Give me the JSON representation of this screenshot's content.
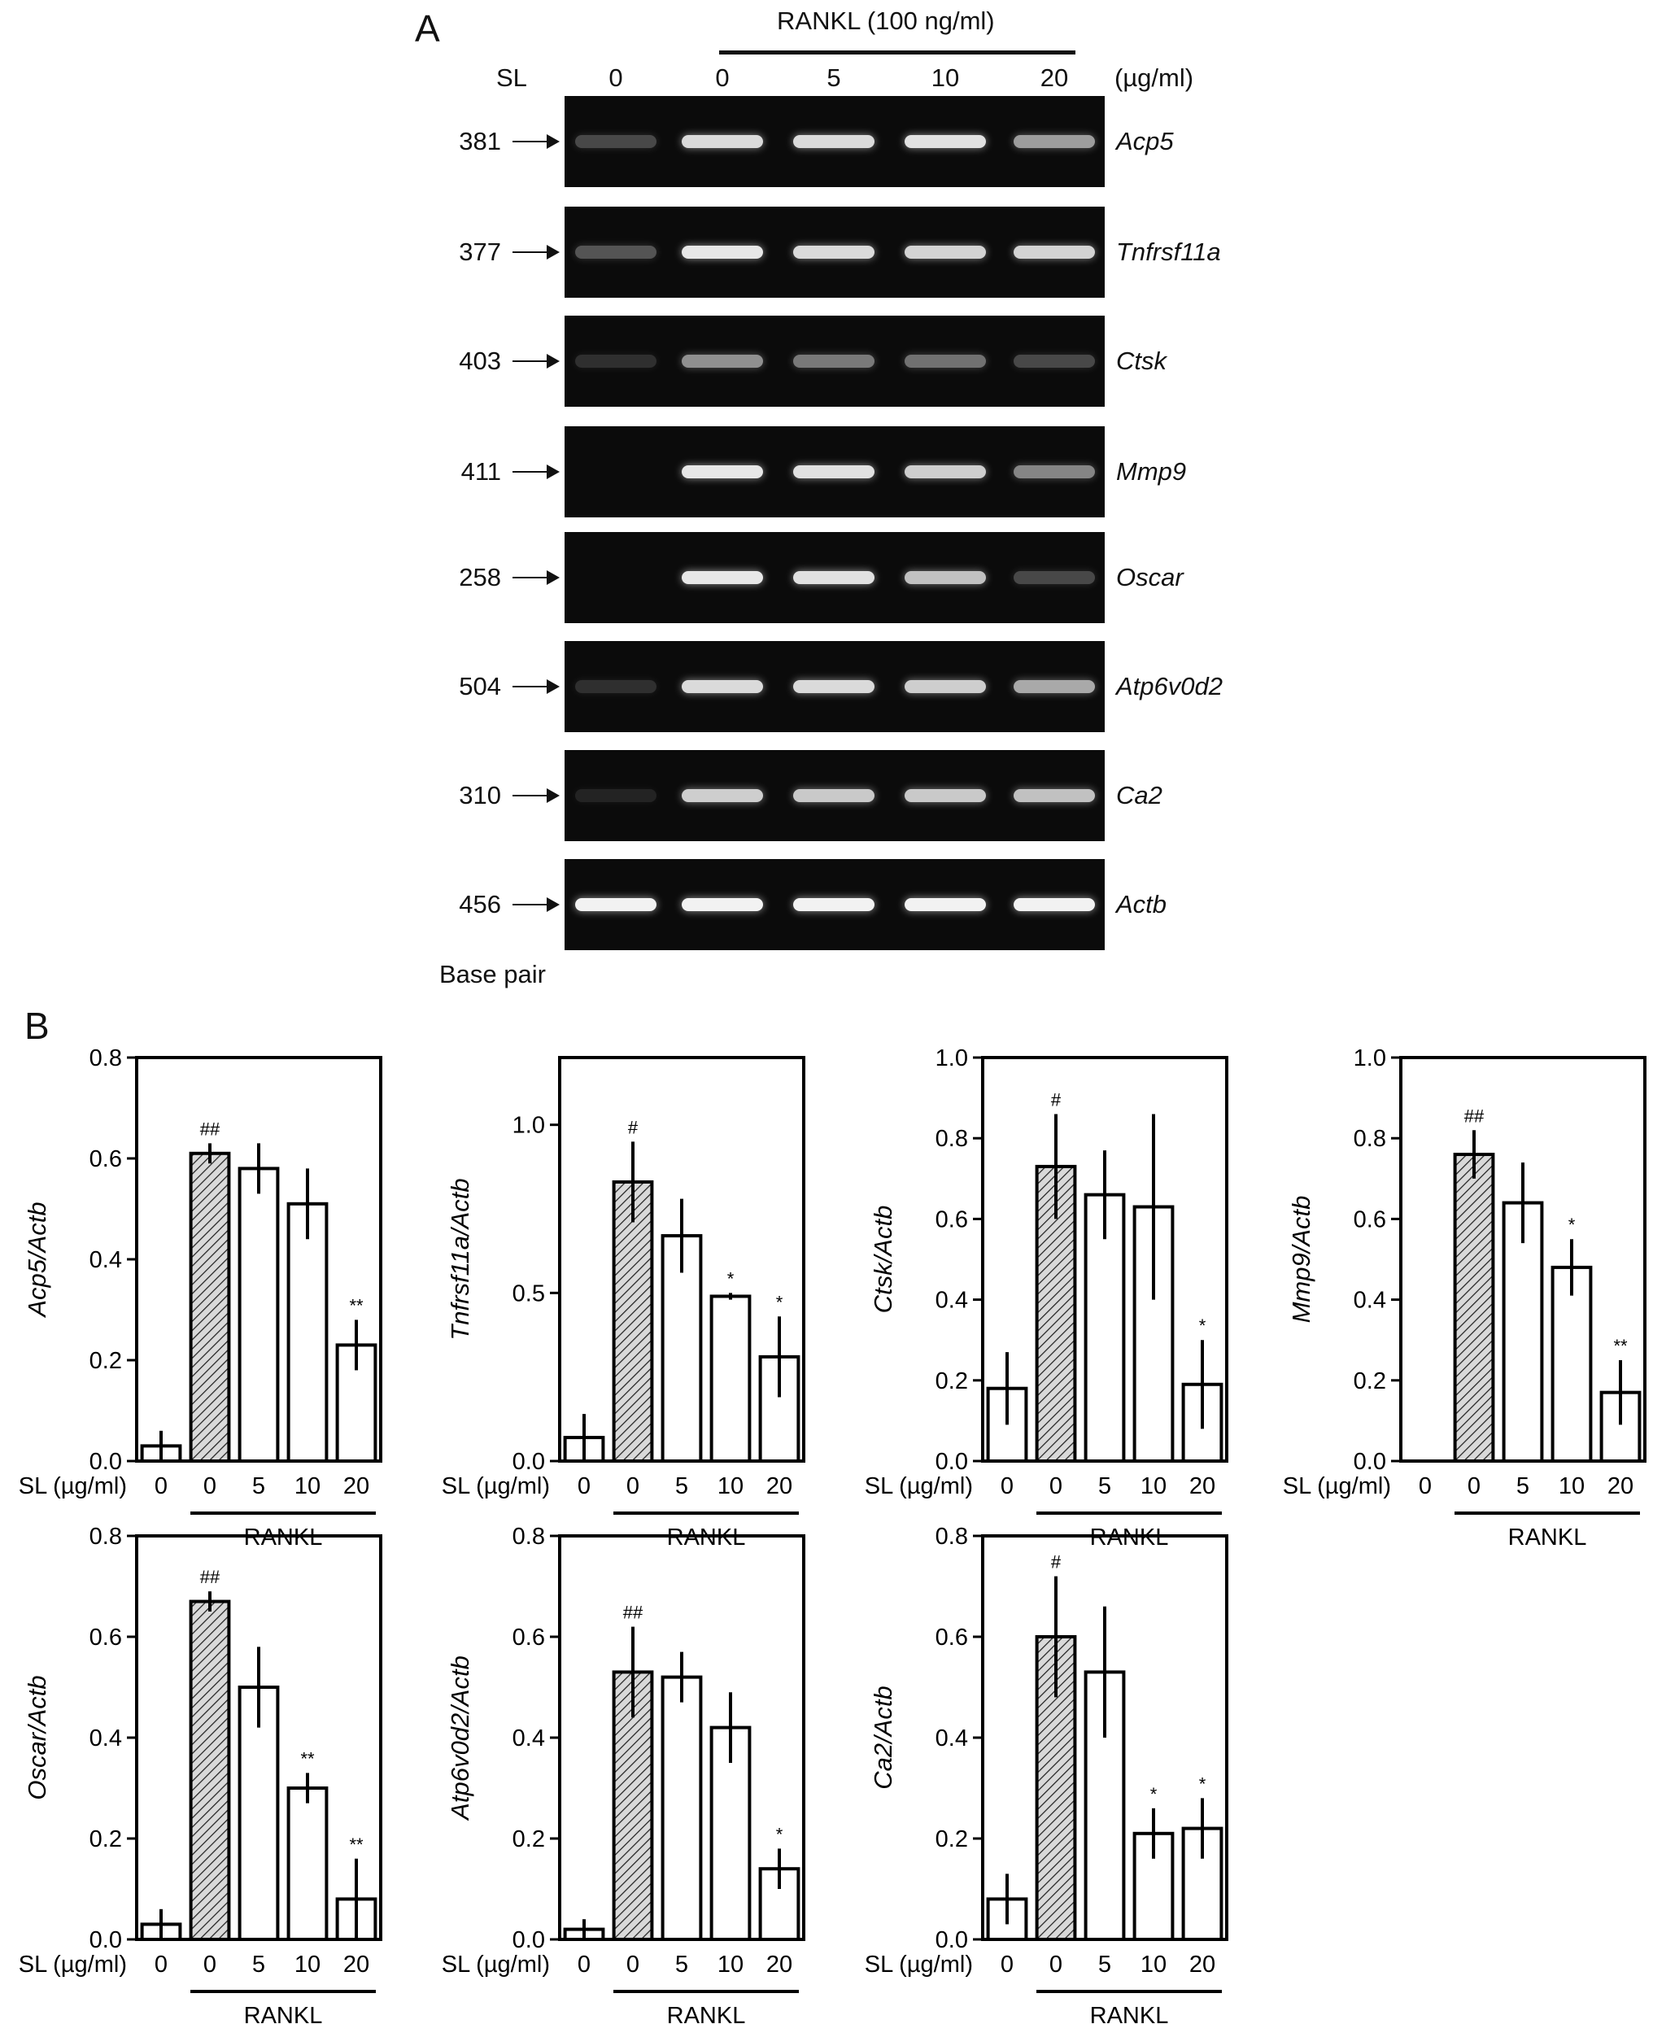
{
  "panel_a": {
    "letter": "A",
    "rankl_label": "RANKL (100 ng/ml)",
    "sl_label": "SL",
    "unit_label": "(µg/ml)",
    "doses": [
      "0",
      "0",
      "5",
      "10",
      "20"
    ],
    "base_pair_label": "Base pair",
    "gels": [
      {
        "bp": "381",
        "gene": "Acp5",
        "bands": [
          0.25,
          0.85,
          0.85,
          0.88,
          0.6
        ]
      },
      {
        "bp": "377",
        "gene": "Tnfrsf11a",
        "bands": [
          0.3,
          0.9,
          0.85,
          0.82,
          0.82
        ]
      },
      {
        "bp": "403",
        "gene": "Ctsk",
        "bands": [
          0.15,
          0.55,
          0.45,
          0.42,
          0.25
        ]
      },
      {
        "bp": "411",
        "gene": "Mmp9",
        "bands": [
          0.0,
          0.9,
          0.88,
          0.8,
          0.5
        ]
      },
      {
        "bp": "258",
        "gene": "Oscar",
        "bands": [
          0.0,
          0.9,
          0.88,
          0.75,
          0.25
        ]
      },
      {
        "bp": "504",
        "gene": "Atp6v0d2",
        "bands": [
          0.15,
          0.85,
          0.85,
          0.8,
          0.65
        ]
      },
      {
        "bp": "310",
        "gene": "Ca2",
        "bands": [
          0.1,
          0.8,
          0.78,
          0.78,
          0.75
        ]
      },
      {
        "bp": "456",
        "gene": "Actb",
        "bands": [
          0.95,
          0.95,
          0.95,
          0.95,
          0.95
        ]
      }
    ]
  },
  "panel_b": {
    "letter": "B",
    "x_axis_label": "SL (µg/ml)",
    "group_label": "RANKL",
    "categories": [
      "0",
      "0",
      "5",
      "10",
      "20"
    ]
  },
  "chart_data": [
    {
      "type": "bar",
      "ylabel": "Acp5/Actb",
      "ylim": [
        0,
        0.8
      ],
      "yticks": [
        "0.0",
        "0.2",
        "0.4",
        "0.6",
        "0.8"
      ],
      "categories": [
        "0",
        "0",
        "5",
        "10",
        "20"
      ],
      "values": [
        0.03,
        0.61,
        0.58,
        0.51,
        0.23
      ],
      "errors": [
        0.03,
        0.02,
        0.05,
        0.07,
        0.05
      ],
      "annotations": [
        "",
        "##",
        "",
        "",
        "**"
      ]
    },
    {
      "type": "bar",
      "ylabel": "Tnfrsf11a/Actb",
      "ylim": [
        0,
        1.2
      ],
      "yticks": [
        "0.0",
        "0.5",
        "1.0"
      ],
      "categories": [
        "0",
        "0",
        "5",
        "10",
        "20"
      ],
      "values": [
        0.07,
        0.83,
        0.67,
        0.49,
        0.31
      ],
      "errors": [
        0.07,
        0.12,
        0.11,
        0.01,
        0.12
      ],
      "annotations": [
        "",
        "#",
        "",
        "*",
        "*"
      ]
    },
    {
      "type": "bar",
      "ylabel": "Ctsk/Actb",
      "ylim": [
        0,
        1.0
      ],
      "yticks": [
        "0.0",
        "0.2",
        "0.4",
        "0.6",
        "0.8",
        "1.0"
      ],
      "categories": [
        "0",
        "0",
        "5",
        "10",
        "20"
      ],
      "values": [
        0.18,
        0.73,
        0.66,
        0.63,
        0.19
      ],
      "errors": [
        0.09,
        0.13,
        0.11,
        0.23,
        0.11
      ],
      "annotations": [
        "",
        "#",
        "",
        "",
        "*"
      ]
    },
    {
      "type": "bar",
      "ylabel": "Mmp9/Actb",
      "ylim": [
        0,
        1.0
      ],
      "yticks": [
        "0.0",
        "0.2",
        "0.4",
        "0.6",
        "0.8",
        "1.0"
      ],
      "categories": [
        "0",
        "0",
        "5",
        "10",
        "20"
      ],
      "values": [
        0.0,
        0.76,
        0.64,
        0.48,
        0.17
      ],
      "errors": [
        0.0,
        0.06,
        0.1,
        0.07,
        0.08
      ],
      "annotations": [
        "",
        "##",
        "",
        "*",
        "**"
      ]
    },
    {
      "type": "bar",
      "ylabel": "Oscar/Actb",
      "ylim": [
        0,
        0.8
      ],
      "yticks": [
        "0.0",
        "0.2",
        "0.4",
        "0.6",
        "0.8"
      ],
      "categories": [
        "0",
        "0",
        "5",
        "10",
        "20"
      ],
      "values": [
        0.03,
        0.67,
        0.5,
        0.3,
        0.08
      ],
      "errors": [
        0.03,
        0.02,
        0.08,
        0.03,
        0.08
      ],
      "annotations": [
        "",
        "##",
        "",
        "**",
        "**"
      ]
    },
    {
      "type": "bar",
      "ylabel": "Atp6v0d2/Actb",
      "ylim": [
        0,
        0.8
      ],
      "yticks": [
        "0.0",
        "0.2",
        "0.4",
        "0.6",
        "0.8"
      ],
      "categories": [
        "0",
        "0",
        "5",
        "10",
        "20"
      ],
      "values": [
        0.02,
        0.53,
        0.52,
        0.42,
        0.14
      ],
      "errors": [
        0.02,
        0.09,
        0.05,
        0.07,
        0.04
      ],
      "annotations": [
        "",
        "##",
        "",
        "",
        "*"
      ]
    },
    {
      "type": "bar",
      "ylabel": "Ca2/Actb",
      "ylim": [
        0,
        0.8
      ],
      "yticks": [
        "0.0",
        "0.2",
        "0.4",
        "0.6",
        "0.8"
      ],
      "categories": [
        "0",
        "0",
        "5",
        "10",
        "20"
      ],
      "values": [
        0.08,
        0.6,
        0.53,
        0.21,
        0.22
      ],
      "errors": [
        0.05,
        0.12,
        0.13,
        0.05,
        0.06
      ],
      "annotations": [
        "",
        "#",
        "",
        "*",
        "*"
      ]
    }
  ]
}
